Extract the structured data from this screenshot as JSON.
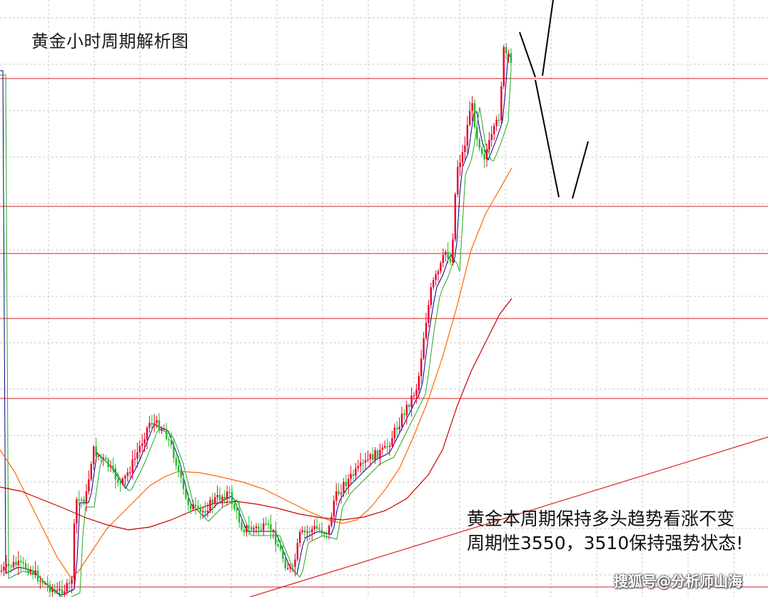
{
  "title": "黄金小时周期解析图",
  "annotation": {
    "line1": "黄金本周期保持多头趋势看涨不变",
    "line2": "周期性3550，3510保持强势状态!"
  },
  "watermark": "搜狐号@分析师山海",
  "colors": {
    "up": "#e8002a",
    "down": "#22bb22",
    "level": "#dd2222",
    "grid": "#c8c8c8",
    "ma_fast": "#000088",
    "ma_mid": "#22aa22",
    "ma_slow": "#ff6600",
    "ma_long": "#cc0000",
    "forecast": "#000000"
  },
  "chart_data": {
    "type": "candlestick",
    "grid": true,
    "price_levels": [
      3550,
      3510
    ],
    "series": [
      "candles",
      "ma_fast",
      "ma_mid",
      "ma_slow",
      "ma_long"
    ],
    "forecast": "zigzag"
  }
}
